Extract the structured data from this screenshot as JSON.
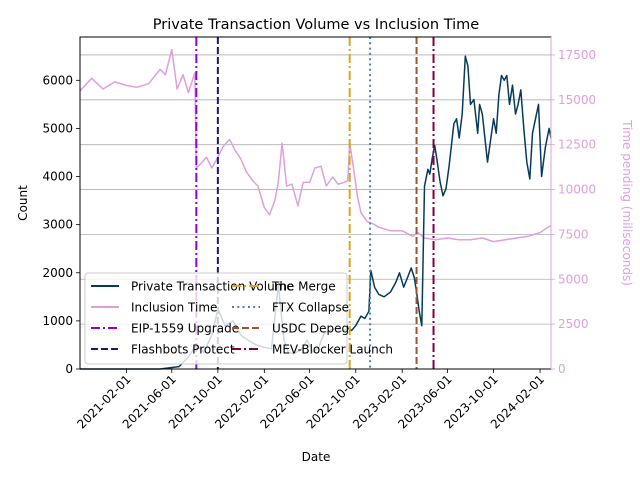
{
  "chart_data": {
    "type": "line",
    "title": "Private Transaction Volume vs Inclusion Time",
    "xlabel": "Date",
    "ylabel": "Count",
    "y2label": "Time pending (miliseconds)",
    "xlim": [
      "2020-10-01",
      "2024-03-01"
    ],
    "ylim": [
      0,
      6900
    ],
    "y2lim": [
      0,
      18500
    ],
    "x_ticks": [
      "2021-02-01",
      "2021-06-01",
      "2021-10-01",
      "2022-02-01",
      "2022-06-01",
      "2022-10-01",
      "2023-02-01",
      "2023-06-01",
      "2023-10-01",
      "2024-02-01"
    ],
    "y_ticks": [
      0,
      1000,
      2000,
      3000,
      4000,
      5000,
      6000
    ],
    "y2_ticks": [
      0,
      2500,
      5000,
      7500,
      10000,
      12500,
      15000,
      17500
    ],
    "grid": "horizontal lines at right-axis ticks",
    "legend_position": "lower-left",
    "colors": {
      "volume": "#073b5a",
      "inclusion": "#dda0dd",
      "eip1559": "#9400d3",
      "flashbots": "#191970",
      "merge": "#daa520",
      "ftx": "#4682b4",
      "usdc": "#a0522d",
      "mevblocker": "#800040",
      "grid": "#b0b0b0"
    },
    "series": [
      {
        "name": "Private Transaction Volume",
        "axis": "left",
        "x": [
          "2020-10-01",
          "2021-02-01",
          "2021-05-01",
          "2021-06-20",
          "2021-07-15",
          "2021-08-05",
          "2021-08-25",
          "2021-09-15",
          "2021-10-01",
          "2021-10-20",
          "2021-11-10",
          "2021-12-01",
          "2021-12-20",
          "2022-01-10",
          "2022-02-01",
          "2022-02-20",
          "2022-03-10",
          "2022-03-25",
          "2022-04-05",
          "2022-04-20",
          "2022-05-10",
          "2022-05-25",
          "2022-06-10",
          "2022-06-25",
          "2022-07-10",
          "2022-07-25",
          "2022-08-10",
          "2022-08-25",
          "2022-09-10",
          "2022-09-20",
          "2022-10-01",
          "2022-10-15",
          "2022-10-25",
          "2022-11-05",
          "2022-11-10",
          "2022-11-20",
          "2022-12-01",
          "2022-12-15",
          "2023-01-01",
          "2023-01-15",
          "2023-01-25",
          "2023-02-05",
          "2023-02-15",
          "2023-02-25",
          "2023-03-05",
          "2023-03-12",
          "2023-03-18",
          "2023-03-25",
          "2023-04-01",
          "2023-04-10",
          "2023-04-15",
          "2023-04-22",
          "2023-04-28",
          "2023-05-05",
          "2023-05-12",
          "2023-05-20",
          "2023-05-28",
          "2023-06-05",
          "2023-06-12",
          "2023-06-18",
          "2023-06-25",
          "2023-07-02",
          "2023-07-10",
          "2023-07-18",
          "2023-07-25",
          "2023-08-01",
          "2023-08-10",
          "2023-08-20",
          "2023-08-25",
          "2023-09-01",
          "2023-09-08",
          "2023-09-15",
          "2023-09-22",
          "2023-10-01",
          "2023-10-08",
          "2023-10-15",
          "2023-10-22",
          "2023-10-29",
          "2023-11-05",
          "2023-11-12",
          "2023-11-20",
          "2023-11-28",
          "2023-12-05",
          "2023-12-12",
          "2023-12-20",
          "2023-12-28",
          "2024-01-05",
          "2024-01-12",
          "2024-01-20",
          "2024-01-28",
          "2024-02-05",
          "2024-02-15",
          "2024-02-25",
          "2024-03-01"
        ],
        "values": [
          0,
          0,
          0,
          50,
          250,
          500,
          350,
          700,
          1250,
          900,
          1000,
          700,
          600,
          500,
          450,
          420,
          1750,
          600,
          350,
          320,
          400,
          600,
          350,
          450,
          750,
          800,
          850,
          780,
          850,
          800,
          900,
          1100,
          1050,
          1200,
          2050,
          1700,
          1550,
          1500,
          1600,
          1800,
          2000,
          1700,
          1900,
          2100,
          1900,
          1550,
          1200,
          900,
          3800,
          4150,
          4050,
          4400,
          4650,
          4300,
          3900,
          3600,
          3750,
          4200,
          4700,
          5100,
          5200,
          4800,
          5300,
          6500,
          6300,
          5500,
          5600,
          4900,
          5500,
          5300,
          4800,
          4300,
          4700,
          5200,
          4900,
          5700,
          6100,
          6000,
          6100,
          5500,
          5900,
          5300,
          5500,
          5800,
          5000,
          4300,
          3950,
          4900,
          5200,
          5500,
          4000,
          4600,
          5000,
          4800
        ]
      },
      {
        "name": "Inclusion Time",
        "axis": "right",
        "x": [
          "2020-10-01",
          "2020-11-01",
          "2020-12-01",
          "2021-01-01",
          "2021-02-01",
          "2021-03-01",
          "2021-04-01",
          "2021-05-01",
          "2021-05-15",
          "2021-06-01",
          "2021-06-15",
          "2021-07-01",
          "2021-07-15",
          "2021-08-01",
          "2021-08-05",
          "2021-08-15",
          "2021-09-01",
          "2021-09-15",
          "2021-10-01",
          "2021-10-15",
          "2021-11-01",
          "2021-11-15",
          "2021-12-01",
          "2021-12-15",
          "2022-01-01",
          "2022-01-15",
          "2022-02-01",
          "2022-02-15",
          "2022-03-01",
          "2022-03-10",
          "2022-03-20",
          "2022-04-01",
          "2022-04-15",
          "2022-05-01",
          "2022-05-15",
          "2022-06-01",
          "2022-06-15",
          "2022-07-01",
          "2022-07-15",
          "2022-08-01",
          "2022-08-15",
          "2022-09-01",
          "2022-09-10",
          "2022-09-15",
          "2022-09-25",
          "2022-10-05",
          "2022-10-15",
          "2022-11-01",
          "2022-11-15",
          "2022-12-01",
          "2023-01-01",
          "2023-02-01",
          "2023-03-01",
          "2023-03-15",
          "2023-04-01",
          "2023-05-01",
          "2023-06-01",
          "2023-07-01",
          "2023-08-01",
          "2023-09-01",
          "2023-10-01",
          "2023-11-01",
          "2023-12-01",
          "2024-01-01",
          "2024-02-01",
          "2024-03-01"
        ],
        "values": [
          15500,
          16200,
          15600,
          16000,
          15800,
          15700,
          15900,
          16700,
          16400,
          17800,
          15600,
          16400,
          15400,
          16500,
          11200,
          11400,
          11800,
          11200,
          11800,
          12400,
          12800,
          12200,
          11700,
          11000,
          10500,
          10200,
          9000,
          8600,
          9400,
          10400,
          12600,
          10200,
          10300,
          9100,
          10400,
          10400,
          11200,
          11300,
          10200,
          10700,
          10300,
          10400,
          10500,
          12600,
          11200,
          9700,
          8700,
          8200,
          8100,
          7900,
          7700,
          7700,
          7400,
          7600,
          7300,
          7200,
          7300,
          7200,
          7200,
          7300,
          7100,
          7200,
          7300,
          7400,
          7600,
          8000
        ]
      }
    ],
    "events": [
      {
        "name": "EIP-1559 Upgrade",
        "date": "2021-08-05",
        "style": "dashdot"
      },
      {
        "name": "Flashbots Protect",
        "date": "2021-10-01",
        "style": "dashed"
      },
      {
        "name": "The Merge",
        "date": "2022-09-15",
        "style": "dashdot"
      },
      {
        "name": "FTX Collapse",
        "date": "2022-11-08",
        "style": "dotted"
      },
      {
        "name": "USDC Depeg",
        "date": "2023-03-11",
        "style": "dashed"
      },
      {
        "name": "MEV-Blocker Launch",
        "date": "2023-04-25",
        "style": "dashdot"
      }
    ]
  }
}
